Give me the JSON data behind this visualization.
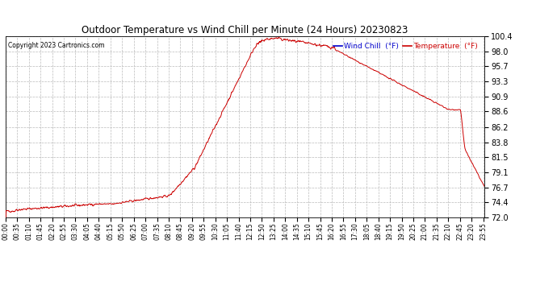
{
  "title": "Outdoor Temperature vs Wind Chill per Minute (24 Hours) 20230823",
  "copyright_text": "Copyright 2023 Cartronics.com",
  "legend_wind_chill": "Wind Chill  (°F)",
  "legend_temperature": "Temperature  (°F)",
  "line_color": "#cc0000",
  "wind_chill_color": "#0000cc",
  "temperature_color": "#cc0000",
  "background_color": "#ffffff",
  "grid_color": "#bbbbbb",
  "title_color": "#000000",
  "y_min": 72.0,
  "y_max": 100.4,
  "yticks": [
    72.0,
    74.4,
    76.7,
    79.1,
    81.5,
    83.8,
    86.2,
    88.6,
    90.9,
    93.3,
    95.7,
    98.0,
    100.4
  ],
  "x_labels": [
    "00:00",
    "00:35",
    "01:10",
    "01:45",
    "02:20",
    "02:55",
    "03:30",
    "04:05",
    "04:40",
    "05:15",
    "05:50",
    "06:25",
    "07:00",
    "07:35",
    "08:10",
    "08:45",
    "09:20",
    "09:55",
    "10:30",
    "11:05",
    "11:40",
    "12:15",
    "12:50",
    "13:25",
    "14:00",
    "14:35",
    "15:10",
    "15:45",
    "16:20",
    "16:55",
    "17:30",
    "18:05",
    "18:40",
    "19:15",
    "19:50",
    "20:25",
    "21:00",
    "21:35",
    "22:10",
    "22:45",
    "23:20",
    "23:55"
  ]
}
